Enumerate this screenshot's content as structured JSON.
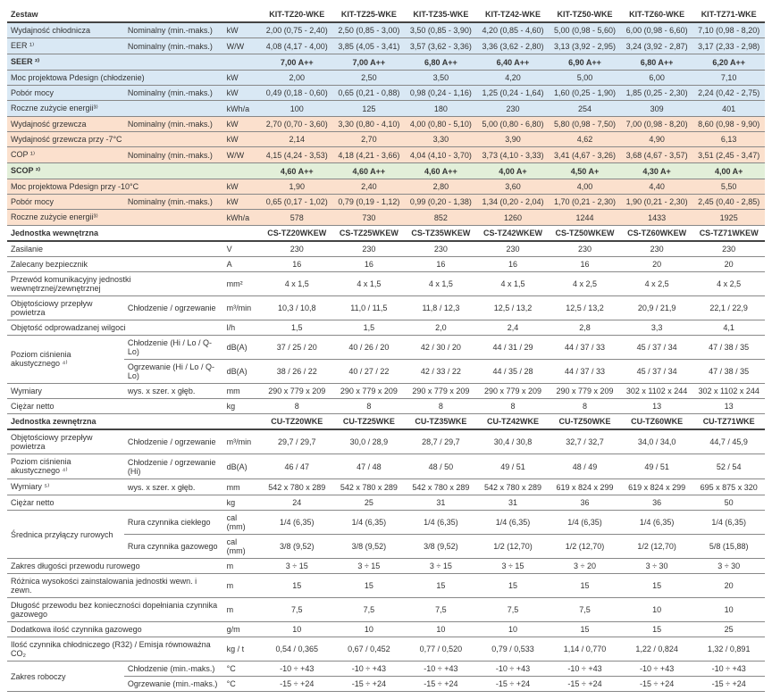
{
  "models": [
    "KIT-TZ20-WKE",
    "KIT-TZ25-WKE",
    "KIT-TZ35-WKE",
    "KIT-TZ42-WKE",
    "KIT-TZ50-WKE",
    "KIT-TZ60-WKE",
    "KIT-TZ71-WKE"
  ],
  "indoor_models": [
    "CS-TZ20WKEW",
    "CS-TZ25WKEW",
    "CS-TZ35WKEW",
    "CS-TZ42WKEW",
    "CS-TZ50WKEW",
    "CS-TZ60WKEW",
    "CS-TZ71WKEW"
  ],
  "outdoor_models": [
    "CU-TZ20WKE",
    "CU-TZ25WKE",
    "CU-TZ35WKE",
    "CU-TZ42WKE",
    "CU-TZ50WKE",
    "CU-TZ60WKE",
    "CU-TZ71WKE"
  ],
  "labels": {
    "zestaw": "Zestaw",
    "wyd_chlod": "Wydajność chłodnicza",
    "nominal": "Nominalny (min.-maks.)",
    "eer": "EER ¹⁾",
    "seer": "SEER ²⁾",
    "moc_proj_chlod": "Moc projektowa Pdesign (chłodzenie)",
    "pobor_mocy": "Pobór mocy",
    "roczne_zuzycie": "Roczne zużycie energii³⁾",
    "wyd_grzew": "Wydajność grzewcza",
    "wyd_grzew_7": "Wydajność grzewcza przy -7°C",
    "cop": "COP ¹⁾",
    "scop": "SCOP ²⁾",
    "moc_proj_10": "Moc projektowa Pdesign przy -10°C",
    "jednostka_wewn": "Jednostka wewnętrzna",
    "zasilanie": "Zasilanie",
    "zalec_bezp": "Zalecany bezpiecznik",
    "przewod_kom": "Przewód komunikacyjny jednostki wewnętrznej/zewnętrznej",
    "obj_przeplyw": "Objętościowy przepływ powietrza",
    "chlod_ogrz": "Chłodzenie / ogrzewanie",
    "obj_odprow": "Objętość odprowadzanej wilgoci",
    "poziom_cisn": "Poziom ciśnienia akustycznego ⁴⁾",
    "chlod_hlq": "Chłodzenie (Hi / Lo / Q-Lo)",
    "ogrz_hlq": "Ogrzewanie (Hi / Lo / Q-Lo)",
    "wymiary": "Wymiary",
    "wymiary5": "Wymiary ⁵⁾",
    "wys_szer_gleb": "wys. x szer. x głęb.",
    "ciezar": "Ciężar netto",
    "jednostka_zewn": "Jednostka zewnętrzna",
    "chlod_ogrz_hi": "Chłodzenie / ogrzewanie (Hi)",
    "srednica": "Średnica przyłączy rurowych",
    "rura_ciekl": "Rura czynnika ciekłego",
    "rura_gaz": "Rura czynnika gazowego",
    "zakres_dl": "Zakres długości przewodu rurowego",
    "roznica_wys": "Różnica wysokości zainstalowania jednostki wewn. i zewn.",
    "dl_przewodu": "Długość przewodu bez konieczności dopełniania czynnika gazowego",
    "dod_czynnik": "Dodatkowa ilość czynnika gazowego",
    "ilosc_czynnika": "Ilość czynnika chłodniczego (R32) / Emisja równoważna CO₂",
    "zakres_rob": "Zakres roboczy",
    "chlod_min_max": "Chłodzenie (min.-maks.)",
    "ogrz_min_max": "Ogrzewanie (min.-maks.)"
  },
  "rows": {
    "wyd_chlod": [
      "2,00 (0,75 - 2,40)",
      "2,50 (0,85 - 3,00)",
      "3,50 (0,85 - 3,90)",
      "4,20 (0,85 - 4,60)",
      "5,00 (0,98 - 5,60)",
      "6,00 (0,98 - 6,60)",
      "7,10 (0,98 - 8,20)"
    ],
    "eer": [
      "4,08 (4,17 - 4,00)",
      "3,85 (4,05 - 3,41)",
      "3,57 (3,62 - 3,36)",
      "3,36 (3,62 - 2,80)",
      "3,13 (3,92 - 2,95)",
      "3,24 (3,92 - 2,87)",
      "3,17 (2,33 - 2,98)"
    ],
    "seer": [
      "7,00 A++",
      "7,00 A++",
      "6,80 A++",
      "6,40 A++",
      "6,90 A++",
      "6,80 A++",
      "6,20 A++"
    ],
    "moc_proj_chlod": [
      "2,00",
      "2,50",
      "3,50",
      "4,20",
      "5,00",
      "6,00",
      "7,10"
    ],
    "pobor_mocy_c": [
      "0,49 (0,18 - 0,60)",
      "0,65 (0,21 - 0,88)",
      "0,98 (0,24 - 1,16)",
      "1,25 (0,24 - 1,64)",
      "1,60 (0,25 - 1,90)",
      "1,85 (0,25 - 2,30)",
      "2,24 (0,42 - 2,75)"
    ],
    "roczne_c": [
      "100",
      "125",
      "180",
      "230",
      "254",
      "309",
      "401"
    ],
    "wyd_grzew": [
      "2,70 (0,70 - 3,60)",
      "3,30 (0,80 - 4,10)",
      "4,00 (0,80 - 5,10)",
      "5,00 (0,80 - 6,80)",
      "5,80 (0,98 - 7,50)",
      "7,00 (0,98 - 8,20)",
      "8,60 (0,98 - 9,90)"
    ],
    "wyd_grzew_7": [
      "2,14",
      "2,70",
      "3,30",
      "3,90",
      "4,62",
      "4,90",
      "6,13"
    ],
    "cop": [
      "4,15 (4,24 - 3,53)",
      "4,18 (4,21 - 3,66)",
      "4,04 (4,10 - 3,70)",
      "3,73 (4,10 - 3,33)",
      "3,41 (4,67 - 3,26)",
      "3,68 (4,67 - 3,57)",
      "3,51 (2,45 - 3,47)"
    ],
    "scop": [
      "4,60 A++",
      "4,60 A++",
      "4,60 A++",
      "4,00 A+",
      "4,50 A+",
      "4,30 A+",
      "4,00 A+"
    ],
    "moc_proj_10": [
      "1,90",
      "2,40",
      "2,80",
      "3,60",
      "4,00",
      "4,40",
      "5,50"
    ],
    "pobor_mocy_h": [
      "0,65 (0,17 - 1,02)",
      "0,79 (0,19 - 1,12)",
      "0,99 (0,20 - 1,38)",
      "1,34 (0,20 - 2,04)",
      "1,70 (0,21 - 2,30)",
      "1,90 (0,21 - 2,30)",
      "2,45 (0,40 - 2,85)"
    ],
    "roczne_h": [
      "578",
      "730",
      "852",
      "1260",
      "1244",
      "1433",
      "1925"
    ],
    "zasilanie": [
      "230",
      "230",
      "230",
      "230",
      "230",
      "230",
      "230"
    ],
    "bezpiecznik": [
      "16",
      "16",
      "16",
      "16",
      "16",
      "20",
      "20"
    ],
    "przewod": [
      "4 x 1,5",
      "4 x 1,5",
      "4 x 1,5",
      "4 x 1,5",
      "4 x 2,5",
      "4 x 2,5",
      "4 x 2,5"
    ],
    "przeplyw_in": [
      "10,3 / 10,8",
      "11,0 / 11,5",
      "11,8 / 12,3",
      "12,5 / 13,2",
      "12,5 / 13,2",
      "20,9 / 21,9",
      "22,1 / 22,9"
    ],
    "wilgoc": [
      "1,5",
      "1,5",
      "2,0",
      "2,4",
      "2,8",
      "3,3",
      "4,1"
    ],
    "akust_c_in": [
      "37 / 25 / 20",
      "40 / 26 / 20",
      "42 / 30 / 20",
      "44 / 31 / 29",
      "44 / 37 / 33",
      "45 / 37 / 34",
      "47 / 38 / 35"
    ],
    "akust_h_in": [
      "38 / 26 / 22",
      "40 / 27 / 22",
      "42 / 33 / 22",
      "44 / 35 / 28",
      "44 / 37 / 33",
      "45 / 37 / 34",
      "47 / 38 / 35"
    ],
    "wymiary_in": [
      "290 x 779 x 209",
      "290 x 779 x 209",
      "290 x 779 x 209",
      "290 x 779 x 209",
      "290 x 779 x 209",
      "302 x 1102 x 244",
      "302 x 1102 x 244"
    ],
    "ciezar_in": [
      "8",
      "8",
      "8",
      "8",
      "8",
      "13",
      "13"
    ],
    "przeplyw_out": [
      "29,7 / 29,7",
      "30,0 / 28,9",
      "28,7 / 29,7",
      "30,4 / 30,8",
      "32,7 / 32,7",
      "34,0 / 34,0",
      "44,7 / 45,9"
    ],
    "akust_out": [
      "46 / 47",
      "47 / 48",
      "48 / 50",
      "49 / 51",
      "48 / 49",
      "49 / 51",
      "52 / 54"
    ],
    "wymiary_out": [
      "542 x 780 x 289",
      "542 x 780 x 289",
      "542 x 780 x 289",
      "542 x 780 x 289",
      "619 x 824 x 299",
      "619 x 824 x 299",
      "695 x 875 x 320"
    ],
    "ciezar_out": [
      "24",
      "25",
      "31",
      "31",
      "36",
      "36",
      "50"
    ],
    "rura_c": [
      "1/4 (6,35)",
      "1/4 (6,35)",
      "1/4 (6,35)",
      "1/4 (6,35)",
      "1/4 (6,35)",
      "1/4 (6,35)",
      "1/4 (6,35)"
    ],
    "rura_g": [
      "3/8 (9,52)",
      "3/8 (9,52)",
      "3/8 (9,52)",
      "1/2 (12,70)",
      "1/2 (12,70)",
      "1/2 (12,70)",
      "5/8 (15,88)"
    ],
    "zakres_dl": [
      "3 ÷ 15",
      "3 ÷ 15",
      "3 ÷ 15",
      "3 ÷ 15",
      "3 ÷ 20",
      "3 ÷ 30",
      "3 ÷ 30"
    ],
    "roznica_wys": [
      "15",
      "15",
      "15",
      "15",
      "15",
      "15",
      "20"
    ],
    "dl_przewodu": [
      "7,5",
      "7,5",
      "7,5",
      "7,5",
      "7,5",
      "10",
      "10"
    ],
    "dod_czynnik": [
      "10",
      "10",
      "10",
      "10",
      "15",
      "15",
      "25"
    ],
    "ilosc_czynnika": [
      "0,54 / 0,365",
      "0,67 / 0,452",
      "0,77 / 0,520",
      "0,79 / 0,533",
      "1,14 / 0,770",
      "1,22 / 0,824",
      "1,32 / 0,891"
    ],
    "zakres_c": [
      "-10 ÷ +43",
      "-10 ÷ +43",
      "-10 ÷ +43",
      "-10 ÷ +43",
      "-10 ÷ +43",
      "-10 ÷ +43",
      "-10 ÷ +43"
    ],
    "zakres_h": [
      "-15 ÷ +24",
      "-15 ÷ +24",
      "-15 ÷ +24",
      "-15 ÷ +24",
      "-15 ÷ +24",
      "-15 ÷ +24",
      "-15 ÷ +24"
    ]
  },
  "units": {
    "kw": "kW",
    "ww": "W/W",
    "kwha": "kWh/a",
    "v": "V",
    "a": "A",
    "mm2": "mm²",
    "m3min": "m³/min",
    "lh": "l/h",
    "dba": "dB(A)",
    "mm": "mm",
    "kg": "kg",
    "cal": "cal (mm)",
    "m": "m",
    "gm": "g/m",
    "kgt": "kg / t",
    "degc": "°C"
  },
  "colors": {
    "blue": "#d9e8f4",
    "orange": "#fbe0cd",
    "green": "#e2efd9",
    "border": "#888",
    "header_border": "#444"
  }
}
